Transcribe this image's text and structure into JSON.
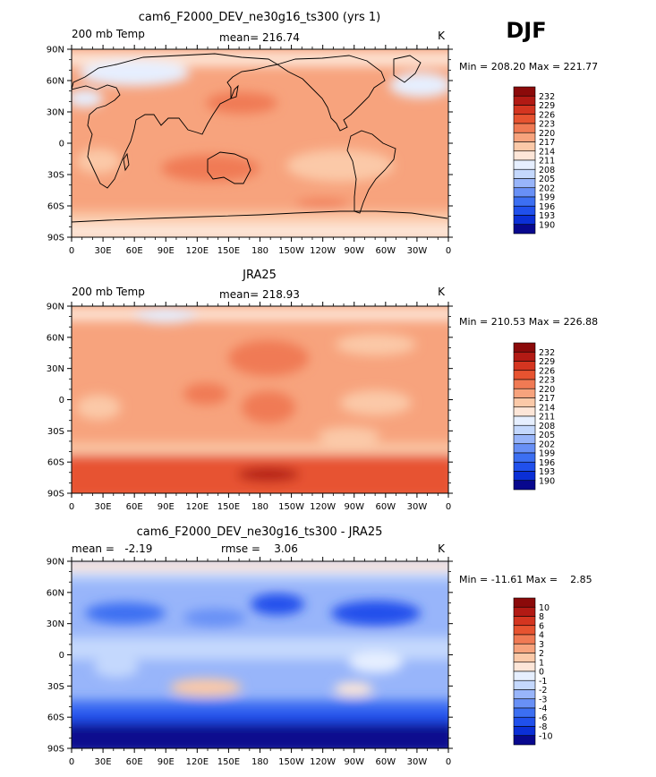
{
  "season": "DJF",
  "colors": {
    "palette": [
      "#08088e",
      "#0b2fd6",
      "#2050ec",
      "#3c6ff2",
      "#6890f6",
      "#98b5fa",
      "#c4d8fd",
      "#e6efff",
      "#fde6d8",
      "#fbc9a8",
      "#f7a37d",
      "#f07a54",
      "#e75330",
      "#d43520",
      "#b21a14",
      "#8b0a0a"
    ],
    "coast": "#000000"
  },
  "chart_data": [
    {
      "type": "heatmap",
      "title": "cam6_F2000_DEV_ne30g16_ts300 (yrs 1)",
      "left_label": "200 mb Temp",
      "center_label": "mean= 216.74",
      "right_label": "K",
      "stats": "Min = 208.20 Max = 221.77",
      "min": 208.2,
      "max": 221.77,
      "levels": [
        "232",
        "229",
        "226",
        "223",
        "220",
        "217",
        "214",
        "211",
        "208",
        "205",
        "202",
        "199",
        "196",
        "193",
        "190"
      ],
      "x_ticks": [
        "0",
        "30E",
        "60E",
        "90E",
        "120E",
        "150E",
        "180",
        "150W",
        "120W",
        "90W",
        "60W",
        "30W",
        "0"
      ],
      "y_ticks": [
        "90N",
        "60N",
        "30N",
        "0",
        "30S",
        "60S",
        "90S"
      ],
      "xlim": [
        0,
        360
      ],
      "ylim": [
        -90,
        90
      ]
    },
    {
      "type": "heatmap",
      "title": "JRA25",
      "left_label": "200 mb Temp",
      "center_label": "mean= 218.93",
      "right_label": "K",
      "stats": "Min = 210.53 Max = 226.88",
      "min": 210.53,
      "max": 226.88,
      "levels": [
        "232",
        "229",
        "226",
        "223",
        "220",
        "217",
        "214",
        "211",
        "208",
        "205",
        "202",
        "199",
        "196",
        "193",
        "190"
      ],
      "x_ticks": [
        "0",
        "30E",
        "60E",
        "90E",
        "120E",
        "150E",
        "180",
        "150W",
        "120W",
        "90W",
        "60W",
        "30W",
        "0"
      ],
      "y_ticks": [
        "90N",
        "60N",
        "30N",
        "0",
        "30S",
        "60S",
        "90S"
      ],
      "xlim": [
        0,
        360
      ],
      "ylim": [
        -90,
        90
      ]
    },
    {
      "type": "heatmap",
      "title": "cam6_F2000_DEV_ne30g16_ts300 - JRA25",
      "left_label": "mean =   -2.19",
      "center_label": "rmse =    3.06",
      "right_label": "K",
      "stats": "Min = -11.61 Max =    2.85",
      "min": -11.61,
      "max": 2.85,
      "levels": [
        "10",
        "8",
        "6",
        "4",
        "3",
        "2",
        "1",
        "0",
        "-1",
        "-2",
        "-3",
        "-4",
        "-6",
        "-8",
        "-10"
      ],
      "x_ticks": [
        "0",
        "30E",
        "60E",
        "90E",
        "120E",
        "150E",
        "180",
        "150W",
        "120W",
        "90W",
        "60W",
        "30W",
        "0"
      ],
      "y_ticks": [
        "90N",
        "60N",
        "30N",
        "0",
        "30S",
        "60S",
        "90S"
      ],
      "xlim": [
        0,
        360
      ],
      "ylim": [
        -90,
        90
      ]
    }
  ]
}
